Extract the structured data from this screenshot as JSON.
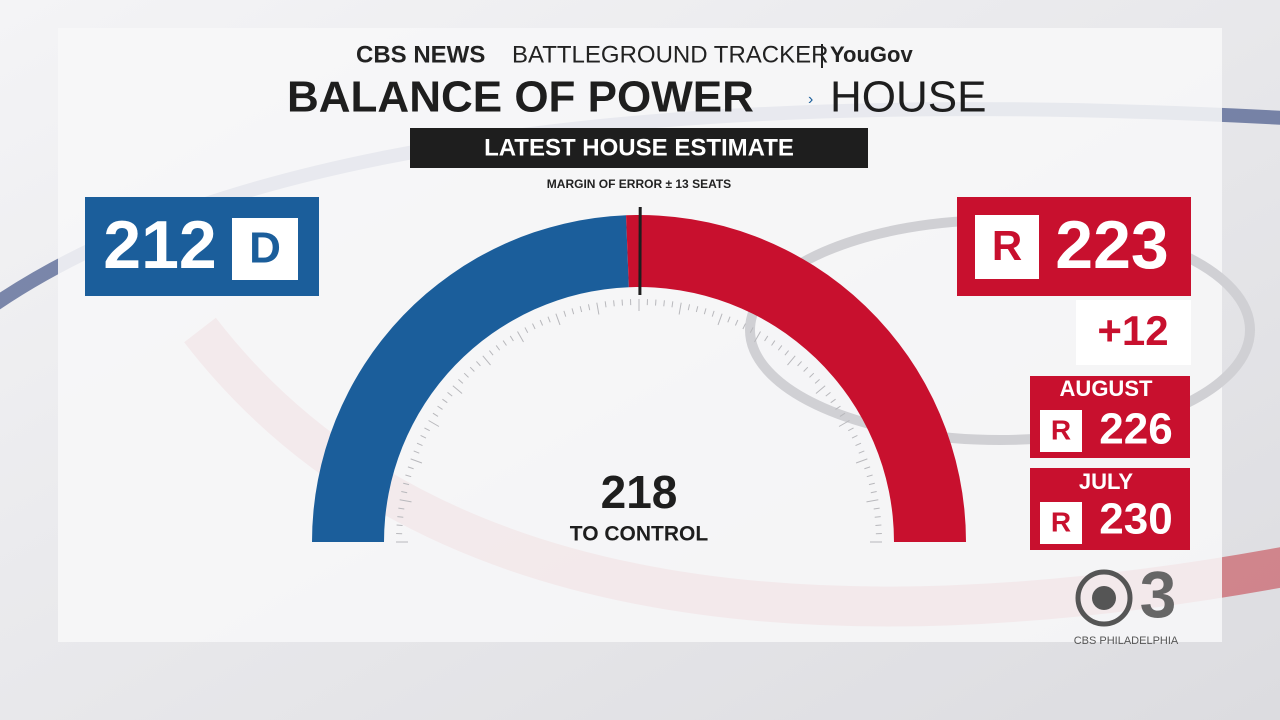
{
  "header": {
    "brand": "CBS NEWS",
    "tracker": "BATTLEGROUND TRACKER",
    "partner": "YouGov",
    "title": "BALANCE OF POWER",
    "section": "HOUSE",
    "banner": "LATEST HOUSE ESTIMATE",
    "margin": "MARGIN OF ERROR ± 13 SEATS"
  },
  "chart_data": {
    "type": "gauge",
    "series": [
      {
        "name": "D",
        "color": "#1b5e9b",
        "value": 212
      },
      {
        "name": "R",
        "color": "#c8102e",
        "value": 223
      }
    ],
    "threshold": 218,
    "threshold_label": "TO CONTROL"
  },
  "change": "+12",
  "history": [
    {
      "month": "AUGUST",
      "party": "R",
      "value": 226
    },
    {
      "month": "JULY",
      "party": "R",
      "value": 230
    }
  ],
  "logo": {
    "number": "3",
    "station": "CBS PHILADELPHIA"
  }
}
